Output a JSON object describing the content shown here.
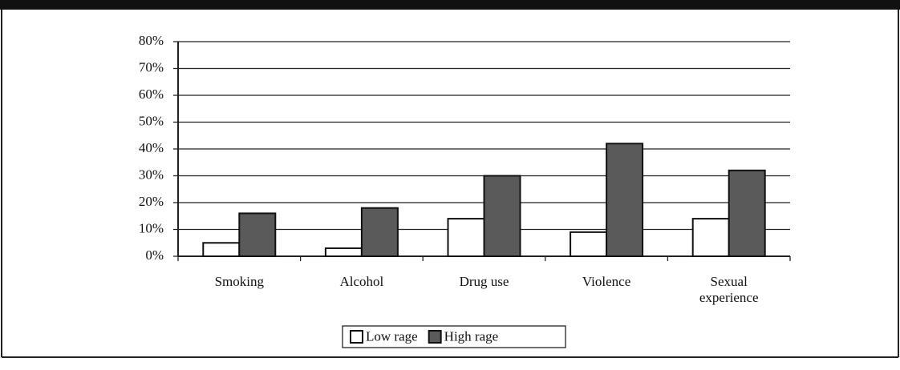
{
  "chart_data": {
    "type": "bar",
    "categories": [
      "Smoking",
      "Alcohol",
      "Drug use",
      "Violence",
      "Sexual experience"
    ],
    "series": [
      {
        "name": "Low rage",
        "color": "#ffffff",
        "values": [
          5,
          3,
          14,
          9,
          14
        ]
      },
      {
        "name": "High rage",
        "color": "#5a5a5a",
        "values": [
          16,
          18,
          30,
          42,
          32
        ]
      }
    ],
    "ylim": [
      0,
      80
    ],
    "yticks": [
      {
        "value": 0,
        "label": "0%"
      },
      {
        "value": 10,
        "label": "10%"
      },
      {
        "value": 20,
        "label": "20%"
      },
      {
        "value": 30,
        "label": "30%"
      },
      {
        "value": 40,
        "label": "40%"
      },
      {
        "value": 50,
        "label": "50%"
      },
      {
        "value": 60,
        "label": "60%"
      },
      {
        "value": 70,
        "label": "70%"
      },
      {
        "value": 80,
        "label": "80%"
      }
    ],
    "grid": true,
    "legend": "bottom"
  }
}
